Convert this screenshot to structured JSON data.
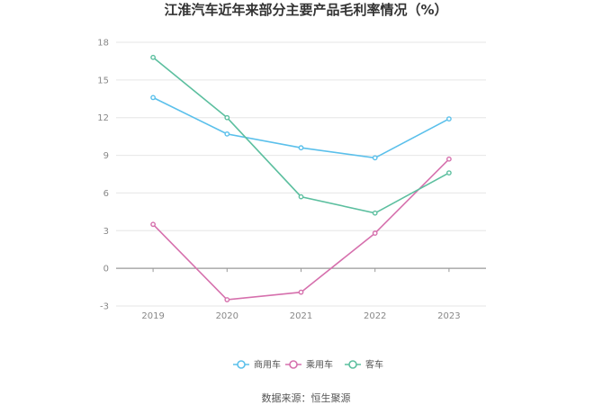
{
  "chart_data": {
    "type": "line",
    "title": "江淮汽车近年来部分主要产品毛利率情况（%）",
    "xlabel": "",
    "ylabel": "",
    "categories": [
      "2019",
      "2020",
      "2021",
      "2022",
      "2023"
    ],
    "ylim": [
      -3,
      18
    ],
    "yticks": [
      -3,
      0,
      3,
      6,
      9,
      12,
      15,
      18
    ],
    "grid": true,
    "legend_position": "bottom",
    "series": [
      {
        "name": "商用车",
        "color": "#5bc0eb",
        "values": [
          13.6,
          10.7,
          9.6,
          8.8,
          11.9
        ]
      },
      {
        "name": "乘用车",
        "color": "#d670ad",
        "values": [
          3.5,
          -2.5,
          -1.9,
          2.8,
          8.7
        ]
      },
      {
        "name": "客车",
        "color": "#5cbf9f",
        "values": [
          16.8,
          12.0,
          5.7,
          4.4,
          7.6
        ]
      }
    ],
    "source": "数据来源：恒生聚源"
  }
}
